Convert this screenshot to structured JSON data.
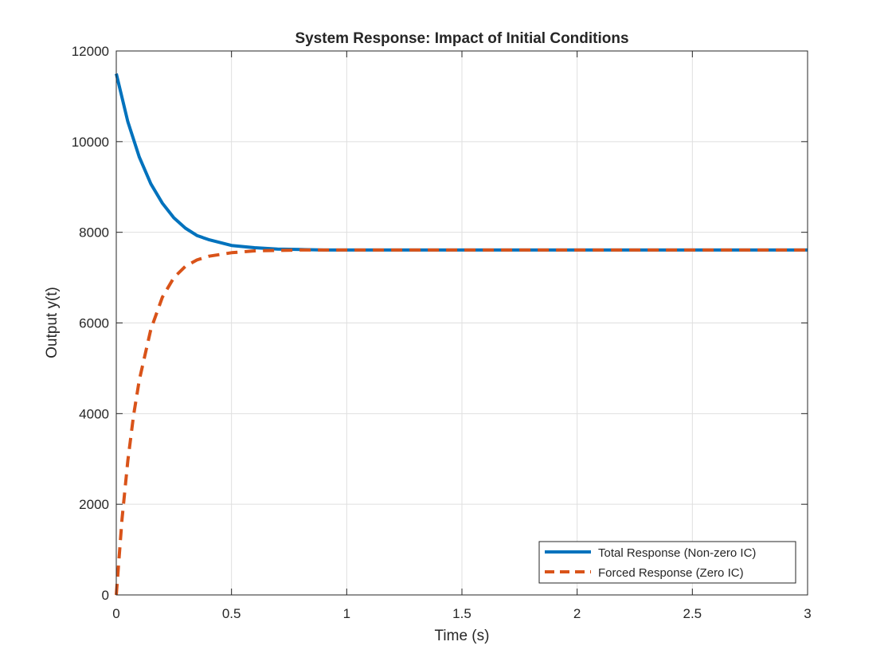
{
  "chart_data": {
    "type": "line",
    "title": "System Response: Impact of Initial Conditions",
    "xlabel": "Time (s)",
    "ylabel": "Output y(t)",
    "xlim": [
      0,
      3
    ],
    "ylim": [
      0,
      12000
    ],
    "xticks": [
      0,
      0.5,
      1,
      1.5,
      2,
      2.5,
      3
    ],
    "xtick_labels": [
      "0",
      "0.5",
      "1",
      "1.5",
      "2",
      "2.5",
      "3"
    ],
    "yticks": [
      0,
      2000,
      4000,
      6000,
      8000,
      10000,
      12000
    ],
    "ytick_labels": [
      "0",
      "2000",
      "4000",
      "6000",
      "8000",
      "10000",
      "12000"
    ],
    "grid": true,
    "legend_position": "bottom-right",
    "series": [
      {
        "name": "Total Response (Non-zero IC)",
        "color": "#0072BD",
        "style": "solid",
        "x": [
          0,
          0.05,
          0.1,
          0.15,
          0.2,
          0.25,
          0.3,
          0.35,
          0.4,
          0.5,
          0.6,
          0.7,
          0.8,
          0.9,
          1.0,
          1.5,
          2.0,
          2.5,
          3.0
        ],
        "y": [
          11500,
          10440,
          9660,
          9070,
          8640,
          8320,
          8090,
          7930,
          7840,
          7710,
          7660,
          7630,
          7620,
          7610,
          7610,
          7610,
          7610,
          7610,
          7610
        ]
      },
      {
        "name": "Forced Response (Zero IC)",
        "color": "#D95319",
        "style": "dashed",
        "x": [
          0,
          0.025,
          0.05,
          0.075,
          0.1,
          0.15,
          0.2,
          0.25,
          0.3,
          0.35,
          0.4,
          0.5,
          0.6,
          0.7,
          0.8,
          0.9,
          1.0,
          1.5,
          2.0,
          2.5,
          3.0
        ],
        "y": [
          0,
          1670,
          2960,
          3960,
          4740,
          5860,
          6570,
          7000,
          7250,
          7390,
          7470,
          7550,
          7590,
          7600,
          7610,
          7610,
          7610,
          7610,
          7610,
          7610,
          7610
        ]
      }
    ]
  }
}
